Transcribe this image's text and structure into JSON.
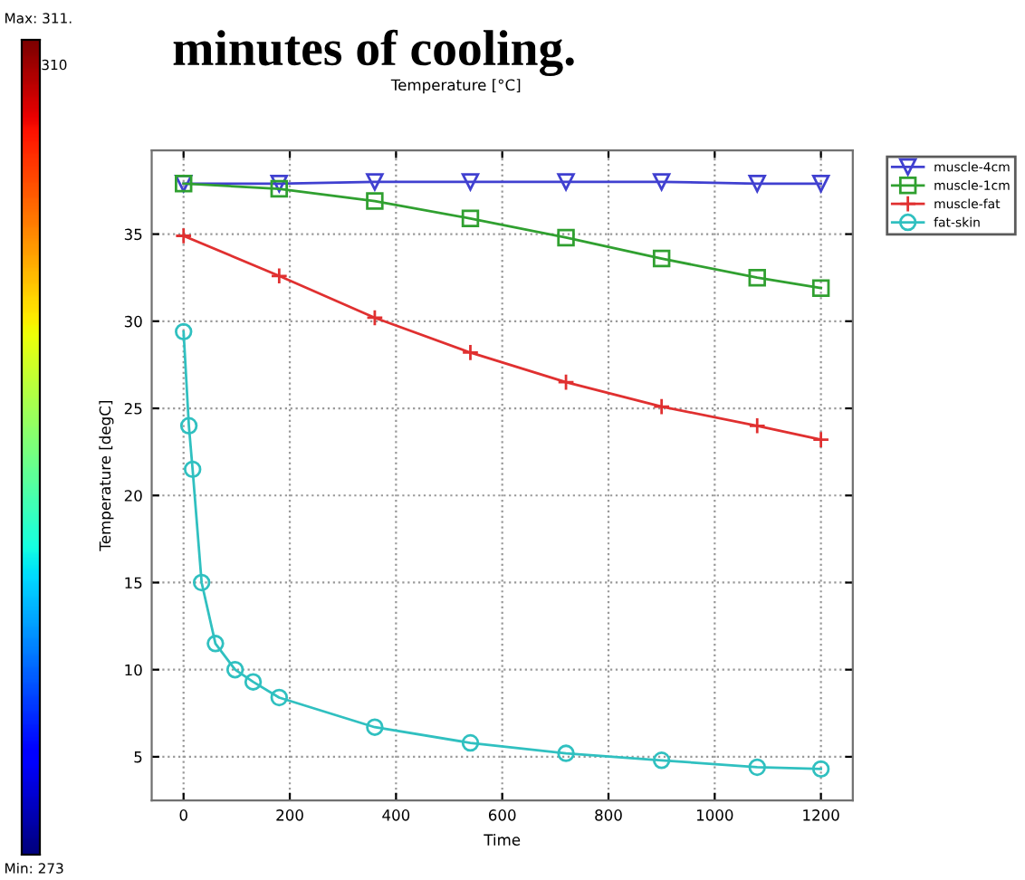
{
  "chart_data": {
    "type": "line",
    "title": "minutes of cooling.",
    "subtitle": "Temperature [°C]",
    "xlabel": "Time",
    "ylabel": "Temperature [degC]",
    "annotations": [
      "Max: 311.",
      "310",
      "Min: 273"
    ],
    "x": [
      0,
      180,
      360,
      540,
      720,
      900,
      1080,
      1200
    ],
    "series": [
      {
        "name": "muscle-4cm",
        "color": "#4040d0",
        "marker": "triangle",
        "values": [
          37.9,
          37.9,
          38.0,
          38.0,
          38.0,
          38.0,
          37.9,
          37.9
        ]
      },
      {
        "name": "muscle-1cm",
        "color": "#30a030",
        "marker": "square",
        "values": [
          37.9,
          37.6,
          36.9,
          35.9,
          34.8,
          33.6,
          32.5,
          31.9
        ]
      },
      {
        "name": "muscle-fat",
        "color": "#e03030",
        "marker": "cross",
        "values": [
          34.9,
          32.6,
          30.2,
          28.2,
          26.5,
          25.1,
          24.0,
          23.2
        ]
      },
      {
        "name": "fat-skin",
        "color": "#30c0c0",
        "marker": "circle",
        "x": [
          0,
          10,
          17,
          34,
          60,
          97,
          131,
          180,
          360,
          540,
          720,
          900,
          1080,
          1200
        ],
        "values": [
          29.4,
          24,
          21.5,
          15,
          11.5,
          10,
          9.3,
          8.4,
          6.7,
          5.8,
          5.2,
          4.8,
          4.4,
          4.3
        ]
      }
    ],
    "xlim": [
      -60,
      1260
    ],
    "ylim": [
      2.5,
      39.8
    ],
    "xticks": [
      0,
      200,
      400,
      600,
      800,
      1000,
      1200
    ],
    "yticks": [
      5,
      10,
      15,
      20,
      25,
      30,
      35
    ],
    "grid": true,
    "legend": "top right",
    "line_style": "solid"
  }
}
